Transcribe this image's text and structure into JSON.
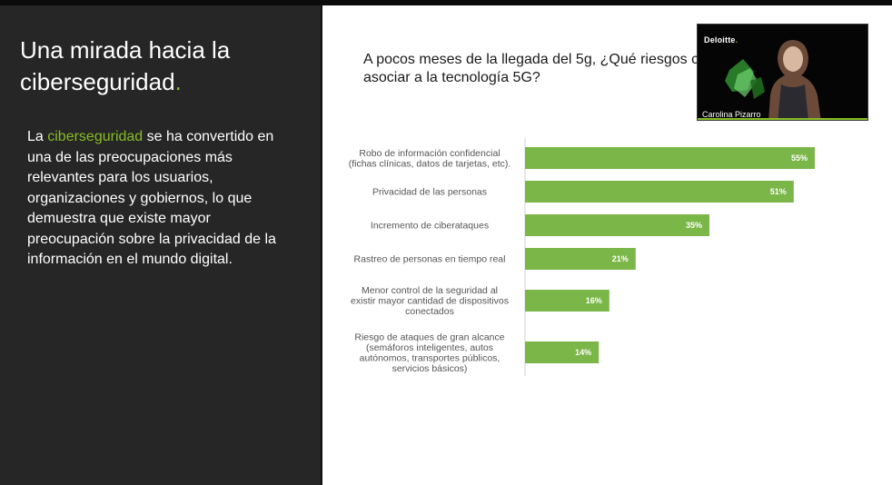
{
  "left_panel": {
    "title_main": "Una mirada hacia la ciberseguridad",
    "title_dot": ".",
    "body_lead": "La ",
    "body_highlight": "ciberseguridad",
    "body_rest": " se ha convertido en una de las preocupaciones más relevantes para los usuarios, organizaciones y gobiernos, lo que demuestra que existe mayor preocupación sobre la privacidad de la información en el mundo digital."
  },
  "question": "A pocos meses de la llegada del 5g, ¿Qué riesgos c asociar a la tecnología 5G?",
  "video": {
    "logo_text": "Deloitte",
    "logo_dot": ".",
    "participant_name": "Carolina Pizarro"
  },
  "colors": {
    "accent": "#86bc25",
    "bar": "#7ab648",
    "left_bg": "#262626"
  },
  "chart_data": {
    "type": "bar",
    "orientation": "horizontal",
    "categories": [
      [
        "Robo de información confidencial",
        "(fichas clínicas, datos de tarjetas, etc)."
      ],
      [
        "Privacidad de las personas"
      ],
      [
        "Incremento de ciberataques"
      ],
      [
        "Rastreo de personas en tiempo real"
      ],
      [
        "Menor control de la seguridad al",
        "existir mayor cantidad de dispositivos",
        "conectados"
      ],
      [
        "Riesgo de ataques de gran alcance",
        "(semáforos inteligentes, autos",
        "autónomos, transportes públicos,",
        "servicios básicos)"
      ]
    ],
    "values": [
      55,
      51,
      35,
      21,
      16,
      14
    ],
    "value_labels": [
      "55%",
      "51%",
      "35%",
      "21%",
      "16%",
      "14%"
    ],
    "unit": "%",
    "xlim": [
      0,
      100
    ],
    "grid": false,
    "legend": "none"
  }
}
